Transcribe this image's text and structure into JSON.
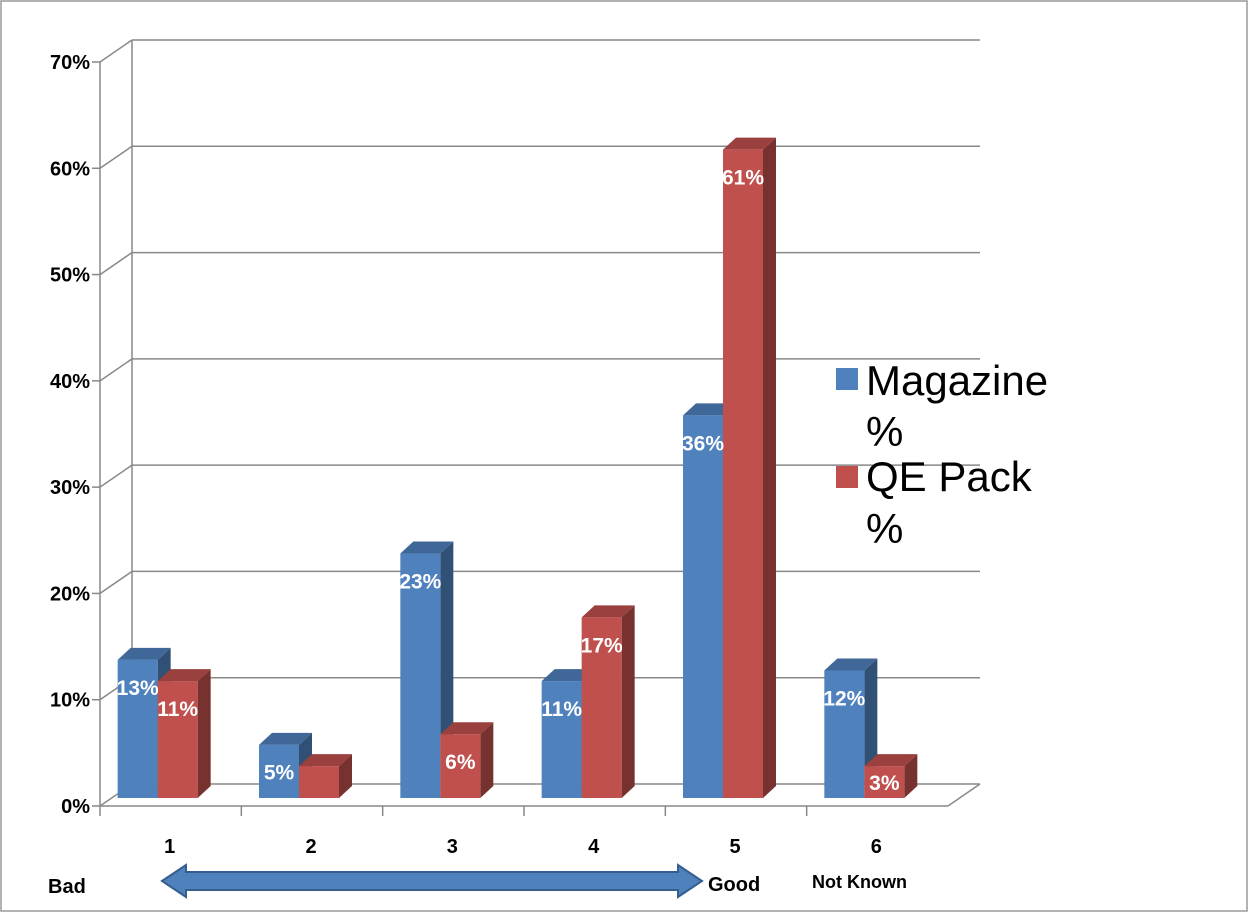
{
  "chart_data": {
    "type": "bar",
    "style": "3d-clustered-column",
    "categories": [
      "1",
      "2",
      "3",
      "4",
      "5",
      "6"
    ],
    "series": [
      {
        "name": "Magazine %",
        "color": "#4F81BD",
        "values": [
          13,
          5,
          23,
          11,
          36,
          12
        ],
        "labels": [
          "13%",
          "5%",
          "23%",
          "11%",
          "36%",
          "12%"
        ]
      },
      {
        "name": "QE Pack %",
        "color": "#C0504D",
        "values": [
          11,
          3,
          6,
          17,
          61,
          3
        ],
        "labels": [
          "11%",
          "",
          "6%",
          "17%",
          "61%",
          "3%"
        ]
      }
    ],
    "yticks": [
      "0%",
      "10%",
      "20%",
      "30%",
      "40%",
      "50%",
      "60%",
      "70%"
    ],
    "ylim": [
      0,
      70
    ],
    "grid": true,
    "legend": "right",
    "scale": {
      "left": "Bad",
      "right": "Good",
      "extra": "Not Known"
    }
  }
}
